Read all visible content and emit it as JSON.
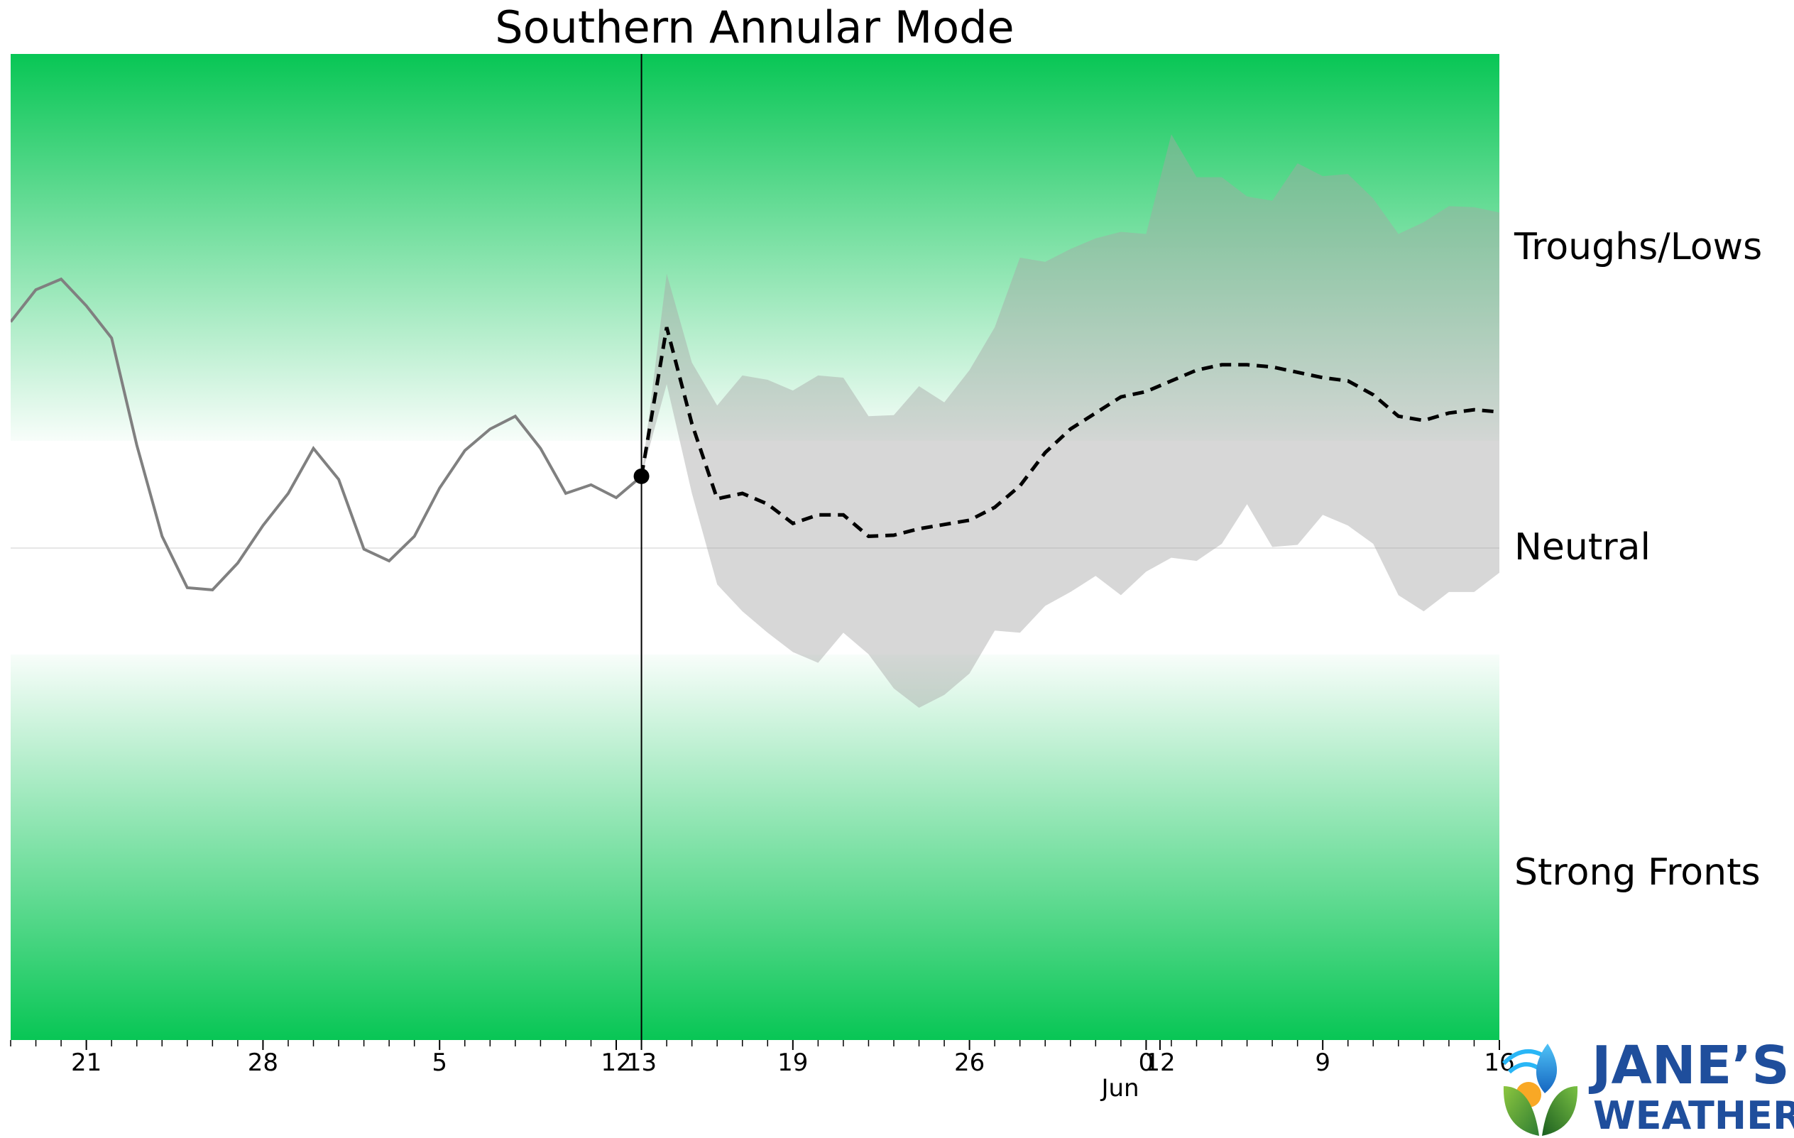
{
  "chart_data": {
    "type": "line",
    "title": "Southern Annular Mode",
    "xlabel": "",
    "ylabel": "",
    "today_marker": "13",
    "regime_labels": {
      "upper": "Troughs/Lows",
      "middle": "Neutral",
      "lower": "Strong Fronts"
    },
    "month_label": "Jun",
    "x_ticks": [
      {
        "x": 21,
        "label": "21"
      },
      {
        "x": 28,
        "label": "28"
      },
      {
        "x": 35,
        "label": "5"
      },
      {
        "x": 42,
        "label": "12"
      },
      {
        "x": 43,
        "label": "13",
        "highlight": true
      },
      {
        "x": 49,
        "label": "19"
      },
      {
        "x": 56,
        "label": "26"
      },
      {
        "x": 63,
        "label": "0"
      },
      {
        "x": 63.55,
        "label": "12"
      },
      {
        "x": 70,
        "label": "9"
      },
      {
        "x": 77,
        "label": "16"
      }
    ],
    "xlim": [
      18,
      77
    ],
    "ylim": [
      -4.6,
      4.6
    ],
    "neutral_band": [
      -1,
      1
    ],
    "series": [
      {
        "role": "observed",
        "style": "solid-gray",
        "x": [
          18,
          19,
          20,
          21,
          22,
          23,
          24,
          25,
          26,
          27,
          28,
          29,
          30,
          31,
          32,
          33,
          34,
          35,
          36,
          37,
          38,
          39,
          40,
          41,
          42,
          43
        ],
        "y": [
          2.1,
          2.4,
          2.5,
          2.25,
          1.95,
          0.95,
          0.1,
          -0.38,
          -0.4,
          -0.15,
          0.2,
          0.5,
          0.92,
          0.63,
          -0.02,
          -0.13,
          0.1,
          0.55,
          0.9,
          1.1,
          1.22,
          0.92,
          0.5,
          0.58,
          0.46,
          0.66
        ]
      },
      {
        "role": "forecast-mean",
        "style": "dashed-black",
        "x": [
          43,
          44,
          45,
          46,
          47,
          48,
          49,
          50,
          51,
          52,
          53,
          54,
          55,
          56,
          57,
          58,
          59,
          60,
          61,
          62,
          63,
          64,
          65,
          66,
          67,
          68,
          69,
          70,
          71,
          72,
          73,
          74,
          75,
          76,
          77
        ],
        "y": [
          0.66,
          2.05,
          1.15,
          0.45,
          0.5,
          0.4,
          0.22,
          0.3,
          0.3,
          0.1,
          0.11,
          0.17,
          0.21,
          0.25,
          0.37,
          0.57,
          0.88,
          1.1,
          1.25,
          1.4,
          1.45,
          1.55,
          1.65,
          1.7,
          1.7,
          1.68,
          1.63,
          1.58,
          1.55,
          1.42,
          1.22,
          1.18,
          1.25,
          1.28,
          1.26
        ]
      }
    ],
    "spread_upper": {
      "x": [
        43,
        44,
        45,
        46,
        47,
        48,
        49,
        50,
        51,
        52,
        53,
        54,
        55,
        56,
        57,
        58,
        59,
        60,
        61,
        62,
        63,
        64,
        65,
        66,
        67,
        68,
        69,
        70,
        71,
        72,
        73,
        74,
        75,
        76,
        77
      ],
      "y": [
        0.66,
        2.55,
        1.72,
        1.32,
        1.6,
        1.56,
        1.46,
        1.6,
        1.58,
        1.22,
        1.23,
        1.5,
        1.35,
        1.65,
        2.05,
        2.7,
        2.66,
        2.78,
        2.88,
        2.94,
        2.92,
        3.85,
        3.45,
        3.45,
        3.27,
        3.23,
        3.58,
        3.46,
        3.48,
        3.25,
        2.92,
        3.03,
        3.18,
        3.17,
        3.12
      ]
    },
    "spread_lower": {
      "x": [
        43,
        44,
        45,
        46,
        47,
        48,
        49,
        50,
        51,
        52,
        53,
        54,
        55,
        56,
        57,
        58,
        59,
        60,
        61,
        62,
        63,
        64,
        65,
        66,
        67,
        68,
        69,
        70,
        71,
        72,
        73,
        74,
        75,
        76,
        77
      ],
      "y": [
        0.66,
        1.52,
        0.5,
        -0.35,
        -0.6,
        -0.8,
        -0.98,
        -1.08,
        -0.8,
        -1.0,
        -1.32,
        -1.5,
        -1.38,
        -1.18,
        -0.78,
        -0.8,
        -0.55,
        -0.42,
        -0.27,
        -0.45,
        -0.23,
        -0.1,
        -0.13,
        0.03,
        0.4,
        0.0,
        0.02,
        0.3,
        0.2,
        0.03,
        -0.45,
        -0.6,
        -0.42,
        -0.42,
        -0.24
      ]
    }
  },
  "logo": {
    "line1": "JANE’S",
    "line2": "WEATHER",
    "brand_color": "#1f4e9c",
    "icon": "weather-leaf-sun-icon"
  },
  "colors": {
    "band_green": "#08c655",
    "observed_line": "#808080",
    "forecast_line": "#000000",
    "spread_fill": "#a6a6a6",
    "today_highlight": "#ff0000"
  }
}
